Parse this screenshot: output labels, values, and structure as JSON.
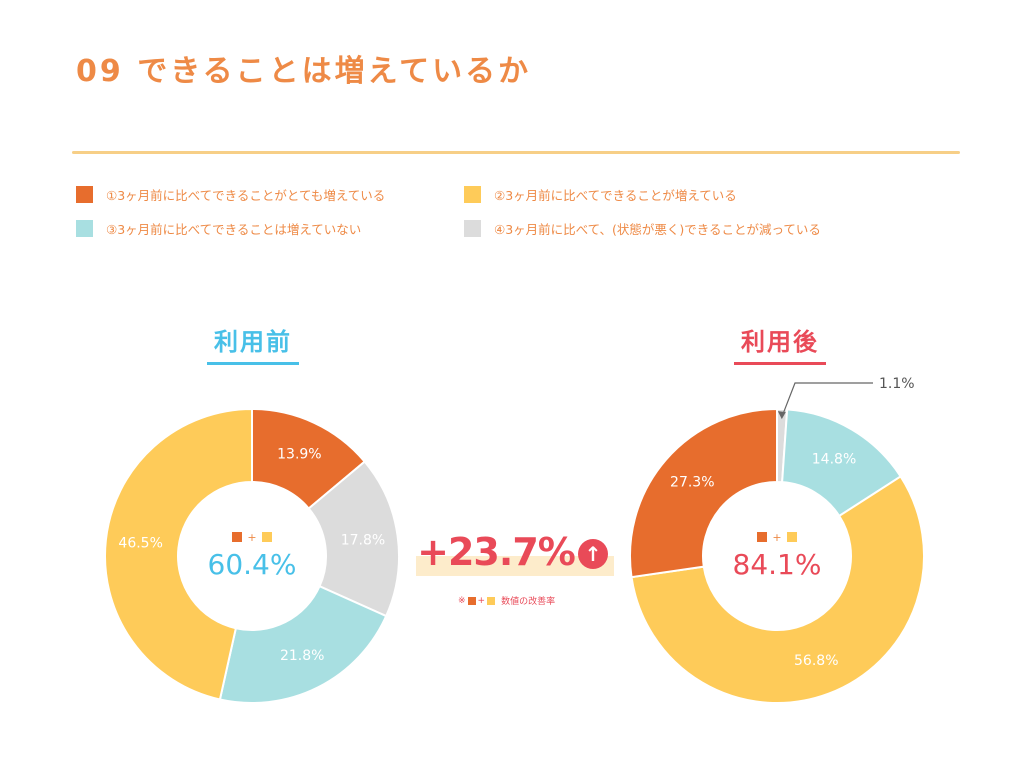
{
  "page": {
    "title": "09 できることは増えているか",
    "colors": {
      "orange": "#e76d2d",
      "yellow": "#fecb59",
      "teal": "#a8dfe1",
      "gray": "#dcdcdc",
      "title_orange": "#ee8a46",
      "blue": "#48c0e8",
      "red": "#e94a58"
    }
  },
  "legend": [
    {
      "label": "①3ヶ月前に比べてできることがとても増えている",
      "color": "#e76d2d"
    },
    {
      "label": "②3ヶ月前に比べてできることが増えている",
      "color": "#fecb59"
    },
    {
      "label": "③3ヶ月前に比べてできることは増えていない",
      "color": "#a8dfe1"
    },
    {
      "label": "④3ヶ月前に比べて、(状態が悪く)できることが減っている",
      "color": "#dcdcdc"
    }
  ],
  "center_plus_sign": "+",
  "improvement": {
    "value": "+23.7%",
    "arrow_icon": "↑",
    "note_prefix": "※",
    "note_plus": "+",
    "note_text": "数値の改善率"
  },
  "chart_data": [
    {
      "type": "pie",
      "variant": "donut",
      "title": "利用前",
      "title_color": "#48c0e8",
      "center_value": "60.4%",
      "center_value_color": "#48c0e8",
      "slices": [
        {
          "category": "①",
          "value": 13.9,
          "label": "13.9%",
          "color": "#e76d2d"
        },
        {
          "category": "④",
          "value": 17.8,
          "label": "17.8%",
          "color": "#dcdcdc"
        },
        {
          "category": "③",
          "value": 21.8,
          "label": "21.8%",
          "color": "#a8dfe1"
        },
        {
          "category": "②",
          "value": 46.5,
          "label": "46.5%",
          "color": "#fecb59"
        }
      ]
    },
    {
      "type": "pie",
      "variant": "donut",
      "title": "利用後",
      "title_color": "#e94a58",
      "center_value": "84.1%",
      "center_value_color": "#e94a58",
      "slices": [
        {
          "category": "④",
          "value": 1.1,
          "label": "1.1%",
          "color": "#dcdcdc"
        },
        {
          "category": "③",
          "value": 14.8,
          "label": "14.8%",
          "color": "#a8dfe1"
        },
        {
          "category": "②",
          "value": 56.8,
          "label": "56.8%",
          "color": "#fecb59"
        },
        {
          "category": "①",
          "value": 27.3,
          "label": "27.3%",
          "color": "#e76d2d"
        }
      ]
    }
  ]
}
